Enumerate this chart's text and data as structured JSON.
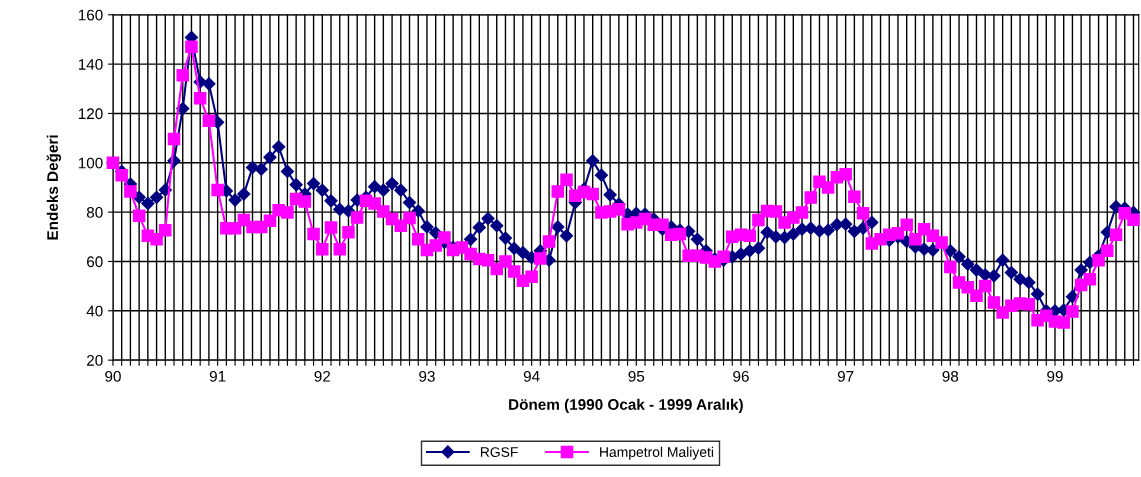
{
  "chart_data": {
    "type": "line",
    "xlabel": "Dönem (1990 Ocak - 1999 Aralık)",
    "ylabel": "Endeks Değeri",
    "categories": [
      "90",
      null,
      null,
      null,
      null,
      null,
      null,
      null,
      null,
      null,
      null,
      null,
      "91",
      null,
      null,
      null,
      null,
      null,
      null,
      null,
      null,
      null,
      null,
      null,
      "92",
      null,
      null,
      null,
      null,
      null,
      null,
      null,
      null,
      null,
      null,
      null,
      "93",
      null,
      null,
      null,
      null,
      null,
      null,
      null,
      null,
      null,
      null,
      null,
      "94",
      null,
      null,
      null,
      null,
      null,
      null,
      null,
      null,
      null,
      null,
      null,
      "95",
      null,
      null,
      null,
      null,
      null,
      null,
      null,
      null,
      null,
      null,
      null,
      "96",
      null,
      null,
      null,
      null,
      null,
      null,
      null,
      null,
      null,
      null,
      null,
      "97",
      null,
      null,
      null,
      null,
      null,
      null,
      null,
      null,
      null,
      null,
      null,
      "98",
      null,
      null,
      null,
      null,
      null,
      null,
      null,
      null,
      null,
      null,
      null,
      "99",
      null,
      null,
      null,
      null,
      null,
      null,
      null,
      null,
      null
    ],
    "series": [
      {
        "name": "RGSF",
        "color": "#000080",
        "marker": "diamond",
        "values": [
          100,
          96.5,
          91.4,
          86,
          83.5,
          86,
          89,
          100.8,
          122,
          150.8,
          132.8,
          132,
          116.4,
          88.6,
          84.9,
          87.3,
          98.1,
          97.4,
          102.2,
          106.5,
          96.5,
          91.1,
          87.3,
          91.6,
          88.9,
          84.6,
          81.1,
          80.5,
          84.9,
          86,
          90.3,
          88.9,
          91.6,
          88.9,
          83.9,
          80.5,
          74,
          71.6,
          67.7,
          65.7,
          null,
          69,
          73.8,
          77.4,
          74.5,
          69.5,
          65.3,
          63.6,
          61.6,
          64.3,
          60.5,
          74,
          70.4,
          83.9,
          89.3,
          100.8,
          95,
          87,
          83.2,
          79.2,
          79.5,
          79.2,
          77.2,
          73.1,
          74,
          72.7,
          72.2,
          69,
          64.3,
          61,
          60.5,
          61.9,
          63,
          64.3,
          65.4,
          71.8,
          70,
          69.7,
          71.1,
          73.1,
          73.5,
          72.4,
          72.7,
          74.9,
          75.1,
          72.2,
          73.5,
          75.8,
          null,
          68.6,
          70,
          68.1,
          65.9,
          65,
          64.6,
          null,
          64.3,
          61.9,
          58.9,
          56.5,
          54.6,
          54.2,
          60.5,
          55.5,
          52.8,
          51.5,
          46.8,
          40,
          40,
          40.3,
          45.7,
          56.5,
          59.6,
          62.3,
          71.8,
          82.2,
          81.6,
          79.9
        ]
      },
      {
        "name": "Hampetrol Maliyeti",
        "color": "#ff00ff",
        "marker": "square",
        "values": [
          100,
          95,
          88.4,
          78.5,
          70.4,
          69,
          72.7,
          109.6,
          135.5,
          147,
          126.2,
          117,
          89,
          73.5,
          73.5,
          76.8,
          74,
          74,
          76.5,
          80.8,
          79.9,
          85.3,
          84.3,
          71.1,
          65,
          73.8,
          65,
          71.8,
          77.8,
          84.6,
          83.5,
          80.3,
          77.2,
          74.5,
          77.6,
          69,
          64.6,
          66.5,
          69.7,
          64.6,
          65.7,
          63,
          61,
          60.5,
          56.9,
          60,
          55.9,
          52.2,
          53.8,
          61.2,
          68.1,
          88.4,
          93.1,
          86.6,
          88.2,
          87.3,
          79.9,
          80.3,
          81.2,
          75.1,
          75.8,
          77.2,
          74.9,
          74.9,
          70.8,
          71.1,
          62.3,
          62.3,
          61.6,
          60,
          61.9,
          70,
          70.8,
          70.4,
          76.8,
          80.5,
          80.3,
          75.8,
          77.8,
          79.9,
          85.9,
          92.3,
          90,
          94.1,
          95.4,
          86.2,
          79.5,
          67.3,
          69,
          70.8,
          71.4,
          74.9,
          69,
          73.1,
          70.4,
          67.7,
          57.8,
          51.5,
          49.5,
          46.1,
          50.1,
          43.4,
          39.3,
          42,
          43,
          42.7,
          36.2,
          38,
          35.7,
          35.3,
          39.7,
          50.5,
          52.8,
          60.5,
          64.3,
          70.8,
          79.5,
          76.9
        ]
      }
    ],
    "ylim": [
      20,
      160
    ],
    "yticks": [
      20,
      40,
      60,
      80,
      100,
      120,
      140,
      160
    ],
    "grid": true,
    "legend": "bottom"
  }
}
